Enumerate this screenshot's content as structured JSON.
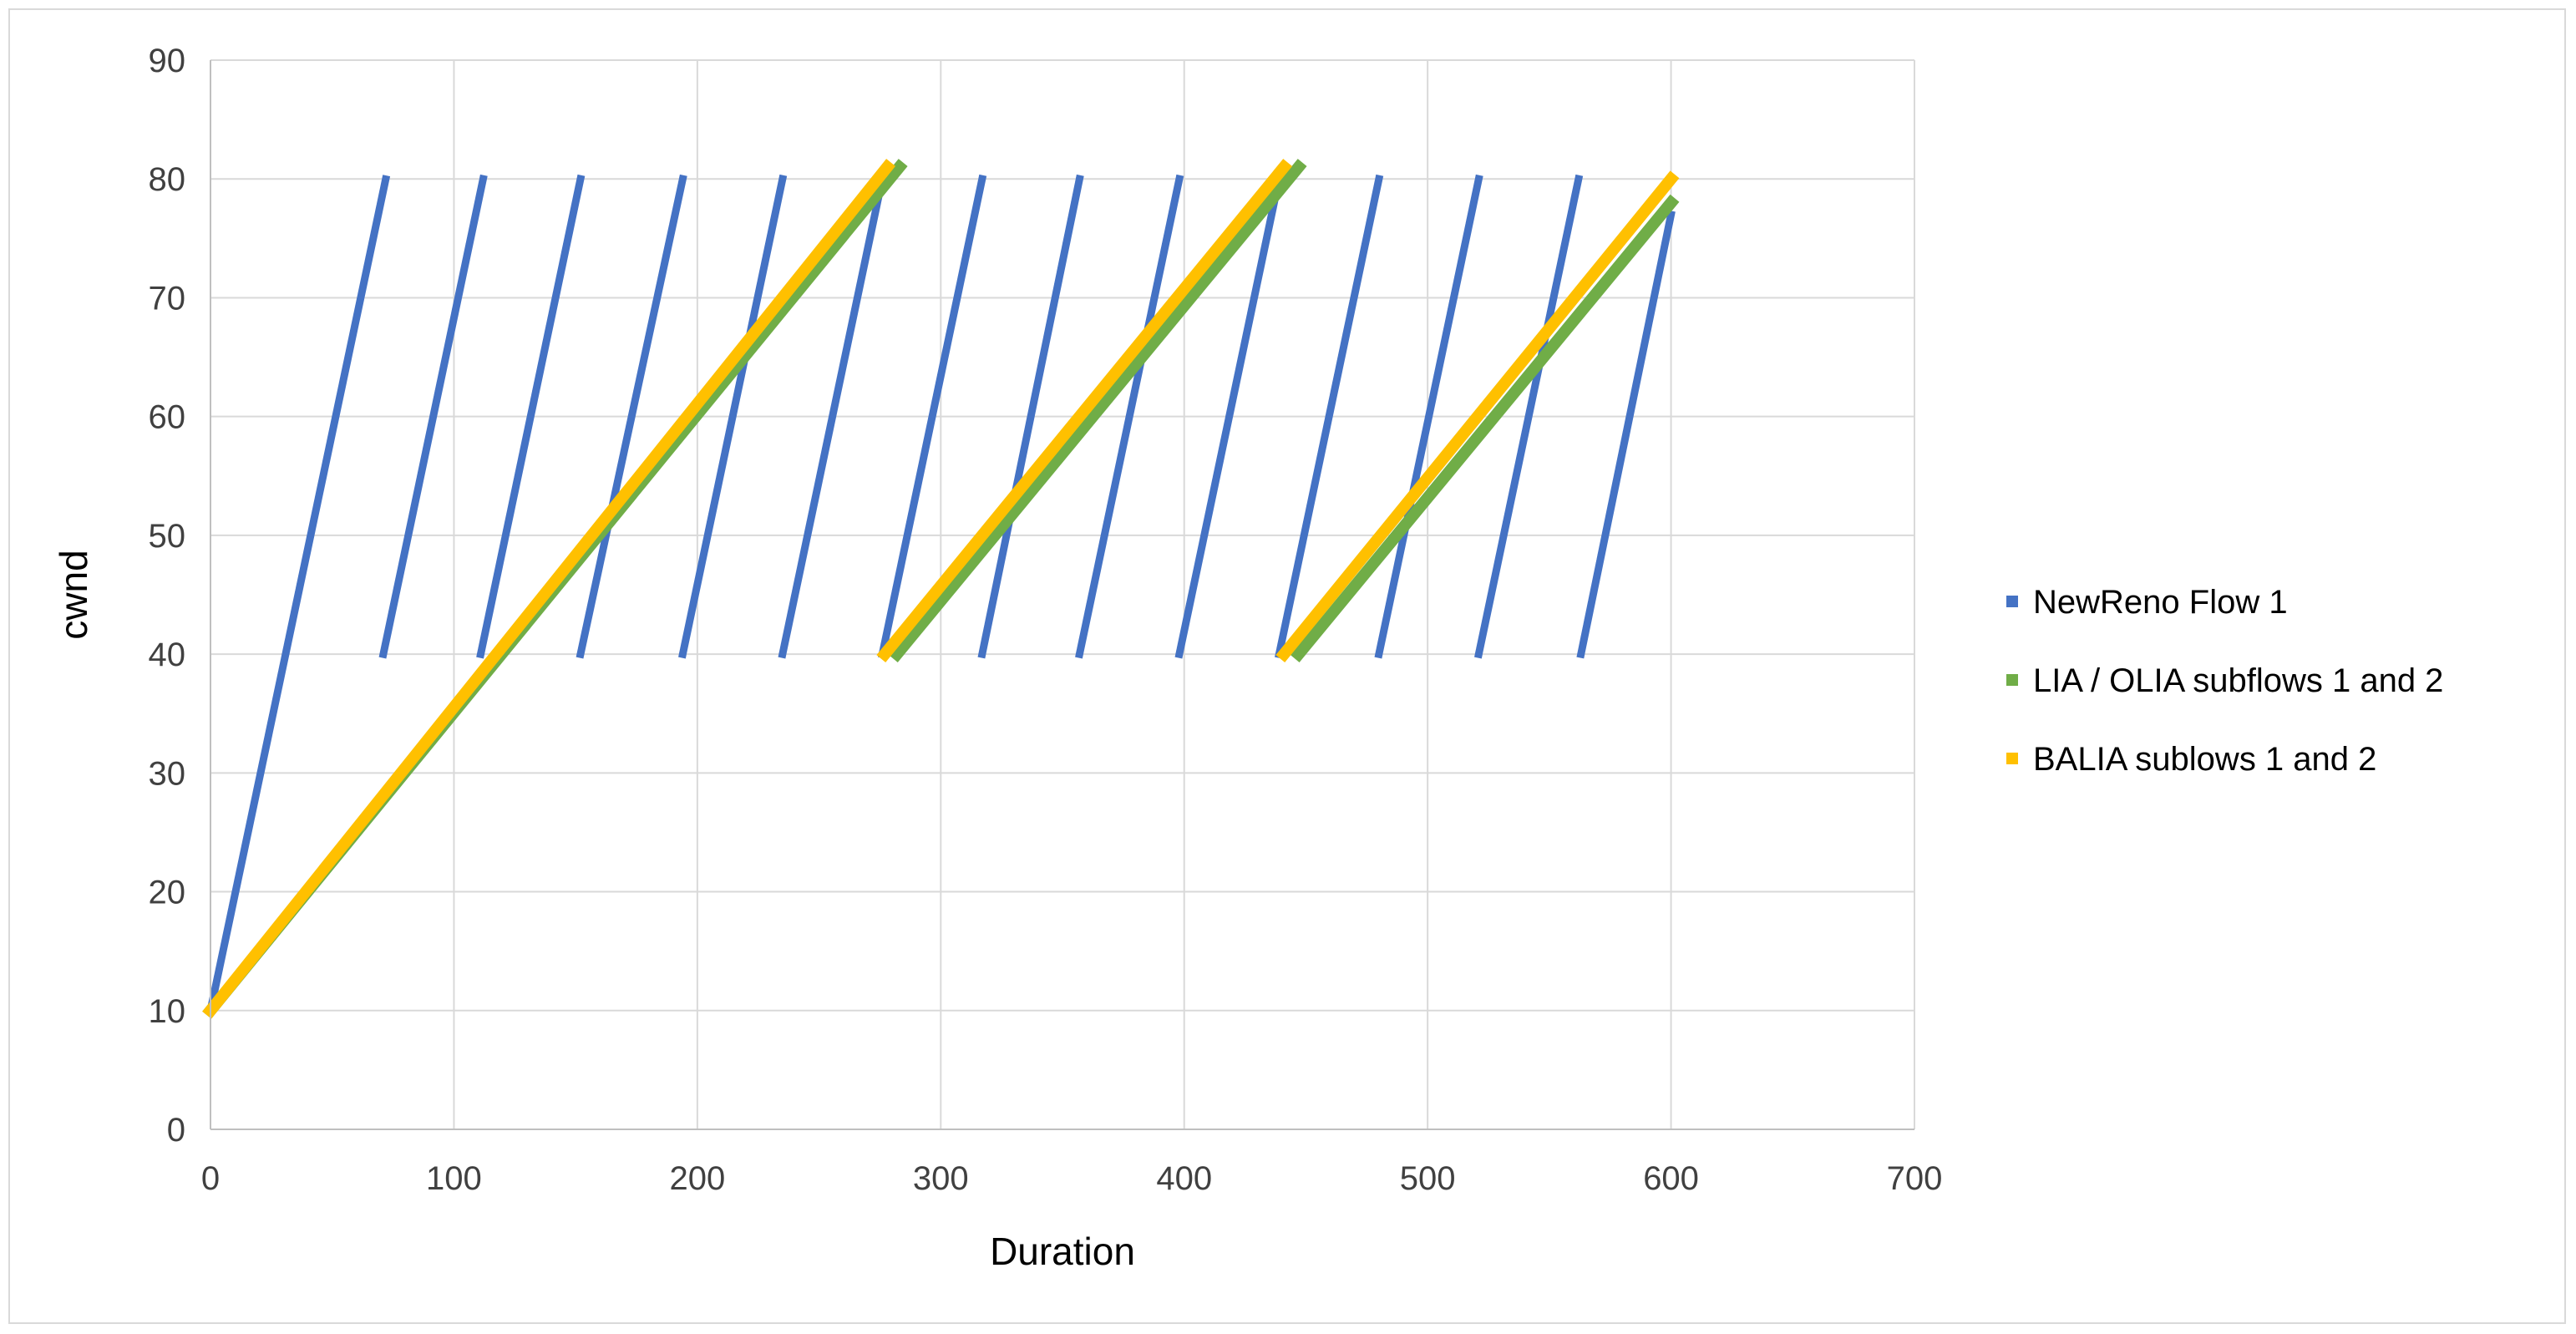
{
  "chart_data": {
    "type": "scatter",
    "title": "",
    "xlabel": "Duration",
    "ylabel": "cwnd",
    "xlim": [
      0,
      700
    ],
    "ylim": [
      0,
      90
    ],
    "x_ticks": [
      "0",
      "100",
      "200",
      "300",
      "400",
      "500",
      "600",
      "700"
    ],
    "y_ticks": [
      "0",
      "10",
      "20",
      "30",
      "40",
      "50",
      "60",
      "70",
      "80",
      "90"
    ],
    "grid": true,
    "legend_position": "right",
    "series": [
      {
        "name": "NewReno Flow 1",
        "color": "#4472C4",
        "segments": [
          {
            "x": [
              0,
              72
            ],
            "y": [
              10,
              80
            ]
          },
          {
            "x": [
              71,
              112
            ],
            "y": [
              40,
              80
            ]
          },
          {
            "x": [
              111,
              152
            ],
            "y": [
              40,
              80
            ]
          },
          {
            "x": [
              152,
              194
            ],
            "y": [
              40,
              80
            ]
          },
          {
            "x": [
              194,
              235
            ],
            "y": [
              40,
              80
            ]
          },
          {
            "x": [
              235,
              276
            ],
            "y": [
              40,
              80
            ]
          },
          {
            "x": [
              276,
              317
            ],
            "y": [
              40,
              80
            ]
          },
          {
            "x": [
              317,
              357
            ],
            "y": [
              40,
              80
            ]
          },
          {
            "x": [
              357,
              398
            ],
            "y": [
              40,
              80
            ]
          },
          {
            "x": [
              398,
              439
            ],
            "y": [
              40,
              80
            ]
          },
          {
            "x": [
              439,
              480
            ],
            "y": [
              40,
              80
            ]
          },
          {
            "x": [
              480,
              521
            ],
            "y": [
              40,
              80
            ]
          },
          {
            "x": [
              521,
              562
            ],
            "y": [
              40,
              80
            ]
          },
          {
            "x": [
              563,
              600
            ],
            "y": [
              40,
              77
            ]
          }
        ]
      },
      {
        "name": "LIA / OLIA subflows 1 and 2",
        "color": "#70AD47",
        "segments": [
          {
            "x": [
              0,
              283
            ],
            "y": [
              10,
              81
            ]
          },
          {
            "x": [
              282,
              447
            ],
            "y": [
              40,
              81
            ]
          },
          {
            "x": [
              447,
              600
            ],
            "y": [
              40,
              78
            ]
          }
        ]
      },
      {
        "name": "BALIA sublows 1 and 2",
        "color": "#FFC000",
        "segments": [
          {
            "x": [
              0,
              278
            ],
            "y": [
              10,
              81
            ]
          },
          {
            "x": [
              277,
              441
            ],
            "y": [
              40,
              81
            ]
          },
          {
            "x": [
              441,
              600
            ],
            "y": [
              40,
              80
            ]
          }
        ]
      }
    ]
  }
}
